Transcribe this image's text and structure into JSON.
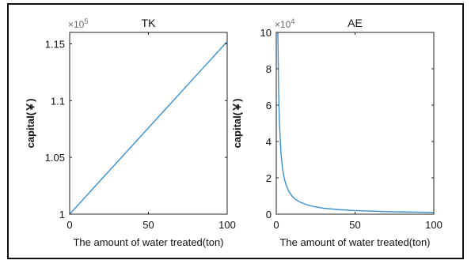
{
  "chart_data": [
    {
      "type": "line",
      "title": "TK",
      "xlabel": "The amount of water treated(ton)",
      "ylabel": "capital(￥)",
      "y_multiplier": "×10",
      "y_exponent": "5",
      "xlim": [
        0,
        100
      ],
      "ylim": [
        1.0,
        1.16
      ],
      "xticks": [
        "0",
        "50",
        "100"
      ],
      "yticks": [
        "1",
        "1.05",
        "1.1",
        "1.15"
      ],
      "yticks_values": [
        1.0,
        1.05,
        1.1,
        1.15
      ],
      "grid": false,
      "series": [
        {
          "color": "#3a8fd0",
          "x": [
            0,
            100
          ],
          "y": [
            1.0,
            1.152
          ]
        }
      ]
    },
    {
      "type": "line",
      "title": "AE",
      "xlabel": "The amount of water treated(ton)",
      "ylabel": "capital(￥)",
      "y_multiplier": "×10",
      "y_exponent": "4",
      "xlim": [
        0,
        100
      ],
      "ylim": [
        0,
        10
      ],
      "xticks": [
        "0",
        "50",
        "100"
      ],
      "yticks": [
        "0",
        "2",
        "4",
        "6",
        "8",
        "10"
      ],
      "yticks_values": [
        0,
        2,
        4,
        6,
        8,
        10
      ],
      "grid": false,
      "series": [
        {
          "color": "#3a8fd0",
          "x": [
            1,
            1.5,
            2,
            3,
            4,
            5,
            6,
            8,
            10,
            12,
            15,
            20,
            25,
            30,
            40,
            50,
            60,
            70,
            80,
            90,
            100
          ],
          "y": [
            10.0,
            6.67,
            5.0,
            3.33,
            2.5,
            2.0,
            1.67,
            1.25,
            1.0,
            0.83,
            0.67,
            0.5,
            0.4,
            0.33,
            0.25,
            0.2,
            0.17,
            0.14,
            0.125,
            0.11,
            0.1
          ]
        }
      ]
    }
  ]
}
